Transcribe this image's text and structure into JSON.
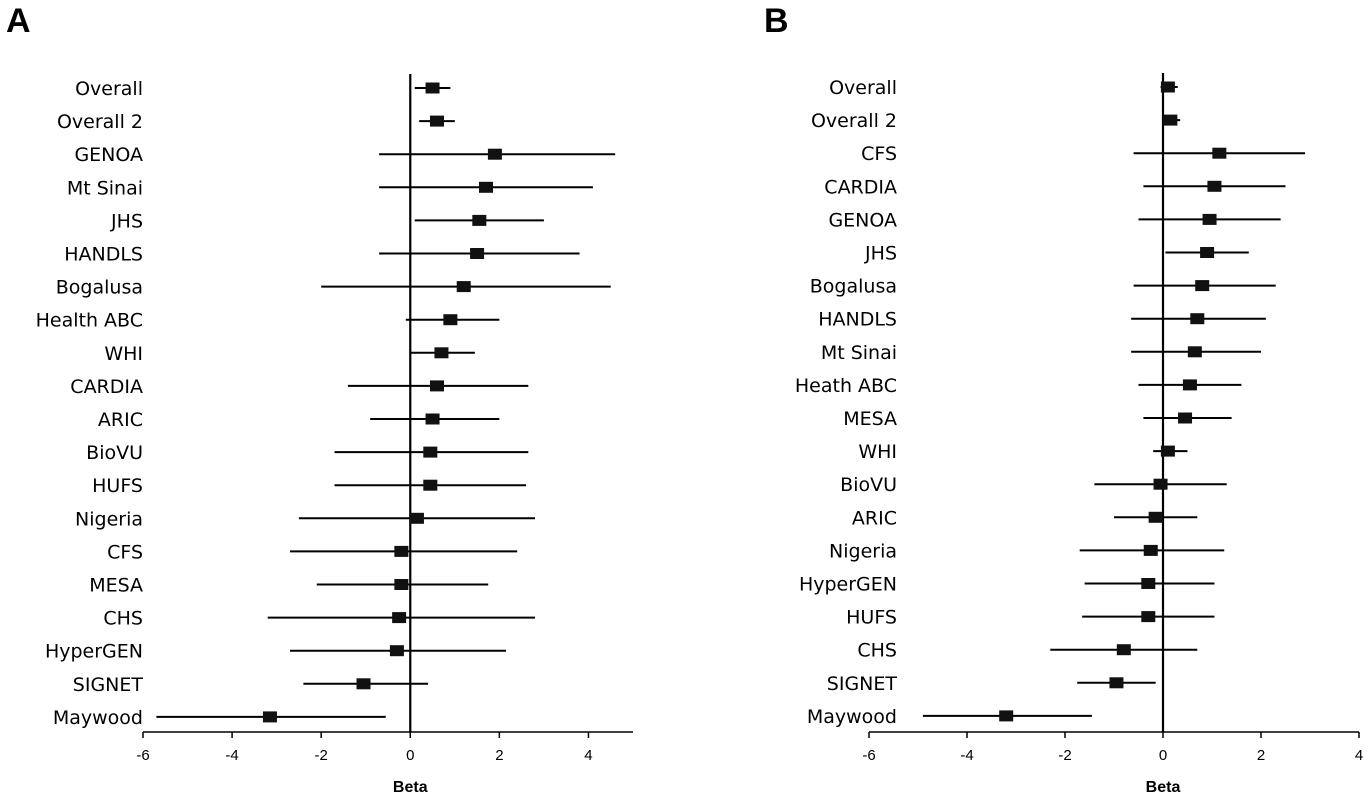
{
  "chart_data": [
    {
      "type": "forest",
      "panel_label": "A",
      "xlabel": "Beta",
      "xlim": [
        -6,
        5
      ],
      "xticks": [
        -6,
        -4,
        -2,
        0,
        2,
        4
      ],
      "tick_labels": [
        "-6",
        "-4",
        "-2",
        "0",
        "2",
        "4"
      ],
      "reference_line": 0,
      "studies": [
        {
          "label": "Overall",
          "beta": 0.5,
          "lower": 0.1,
          "upper": 0.9
        },
        {
          "label": "Overall 2",
          "beta": 0.6,
          "lower": 0.2,
          "upper": 1.0
        },
        {
          "label": "GENOA",
          "beta": 1.9,
          "lower": -0.7,
          "upper": 4.6
        },
        {
          "label": "Mt Sinai",
          "beta": 1.7,
          "lower": -0.7,
          "upper": 4.1
        },
        {
          "label": "JHS",
          "beta": 1.55,
          "lower": 0.1,
          "upper": 3.0
        },
        {
          "label": "HANDLS",
          "beta": 1.5,
          "lower": -0.7,
          "upper": 3.8
        },
        {
          "label": "Bogalusa",
          "beta": 1.2,
          "lower": -2.0,
          "upper": 4.5
        },
        {
          "label": "Health ABC",
          "beta": 0.9,
          "lower": -0.1,
          "upper": 2.0
        },
        {
          "label": "WHI",
          "beta": 0.7,
          "lower": 0.0,
          "upper": 1.45
        },
        {
          "label": "CARDIA",
          "beta": 0.6,
          "lower": -1.4,
          "upper": 2.65
        },
        {
          "label": "ARIC",
          "beta": 0.5,
          "lower": -0.9,
          "upper": 2.0
        },
        {
          "label": "BioVU",
          "beta": 0.45,
          "lower": -1.7,
          "upper": 2.65
        },
        {
          "label": "HUFS",
          "beta": 0.45,
          "lower": -1.7,
          "upper": 2.6
        },
        {
          "label": "Nigeria",
          "beta": 0.15,
          "lower": -2.5,
          "upper": 2.8
        },
        {
          "label": "CFS",
          "beta": -0.2,
          "lower": -2.7,
          "upper": 2.4
        },
        {
          "label": "MESA",
          "beta": -0.2,
          "lower": -2.1,
          "upper": 1.75
        },
        {
          "label": "CHS",
          "beta": -0.25,
          "lower": -3.2,
          "upper": 2.8
        },
        {
          "label": "HyperGEN",
          "beta": -0.3,
          "lower": -2.7,
          "upper": 2.15
        },
        {
          "label": "SIGNET",
          "beta": -1.05,
          "lower": -2.4,
          "upper": 0.4
        },
        {
          "label": "Maywood",
          "beta": -3.15,
          "lower": -5.7,
          "upper": -0.55
        }
      ]
    },
    {
      "type": "forest",
      "panel_label": "B",
      "xlabel": "Beta",
      "xlim": [
        -6,
        4
      ],
      "xticks": [
        -6,
        -4,
        -2,
        0,
        2,
        4
      ],
      "tick_labels": [
        "-6",
        "-4",
        "-2",
        "0",
        "2",
        "4"
      ],
      "reference_line": 0,
      "studies": [
        {
          "label": "Overall",
          "beta": 0.1,
          "lower": -0.05,
          "upper": 0.3
        },
        {
          "label": "Overall 2",
          "beta": 0.15,
          "lower": 0.0,
          "upper": 0.35
        },
        {
          "label": "CFS",
          "beta": 1.15,
          "lower": -0.6,
          "upper": 2.9
        },
        {
          "label": "CARDIA",
          "beta": 1.05,
          "lower": -0.4,
          "upper": 2.5
        },
        {
          "label": "GENOA",
          "beta": 0.95,
          "lower": -0.5,
          "upper": 2.4
        },
        {
          "label": "JHS",
          "beta": 0.9,
          "lower": 0.05,
          "upper": 1.75
        },
        {
          "label": "Bogalusa",
          "beta": 0.8,
          "lower": -0.6,
          "upper": 2.3
        },
        {
          "label": "HANDLS",
          "beta": 0.7,
          "lower": -0.65,
          "upper": 2.1
        },
        {
          "label": "Mt Sinai",
          "beta": 0.65,
          "lower": -0.65,
          "upper": 2.0
        },
        {
          "label": "Heath ABC",
          "beta": 0.55,
          "lower": -0.5,
          "upper": 1.6
        },
        {
          "label": "MESA",
          "beta": 0.45,
          "lower": -0.4,
          "upper": 1.4
        },
        {
          "label": "WHI",
          "beta": 0.1,
          "lower": -0.2,
          "upper": 0.5
        },
        {
          "label": "BioVU",
          "beta": -0.05,
          "lower": -1.4,
          "upper": 1.3
        },
        {
          "label": "ARIC",
          "beta": -0.15,
          "lower": -1.0,
          "upper": 0.7
        },
        {
          "label": "Nigeria",
          "beta": -0.25,
          "lower": -1.7,
          "upper": 1.25
        },
        {
          "label": "HyperGEN",
          "beta": -0.3,
          "lower": -1.6,
          "upper": 1.05
        },
        {
          "label": "HUFS",
          "beta": -0.3,
          "lower": -1.65,
          "upper": 1.05
        },
        {
          "label": "CHS",
          "beta": -0.8,
          "lower": -2.3,
          "upper": 0.7
        },
        {
          "label": "SIGNET",
          "beta": -0.95,
          "lower": -1.75,
          "upper": -0.15
        },
        {
          "label": "Maywood",
          "beta": -3.2,
          "lower": -4.9,
          "upper": -1.45
        }
      ]
    }
  ]
}
